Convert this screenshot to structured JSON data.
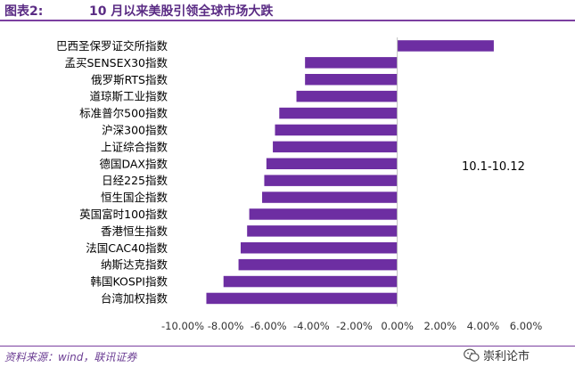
{
  "figure": {
    "label": "图表2:",
    "title": "10 月以来美股引领全球市场大跌"
  },
  "chart_data": {
    "type": "bar",
    "orientation": "horizontal",
    "categories": [
      "巴西圣保罗证交所指数",
      "孟买SENSEX30指数",
      "俄罗斯RTS指数",
      "道琼斯工业指数",
      "标准普尔500指数",
      "沪深300指数",
      "上证综合指数",
      "德国DAX指数",
      "日经225指数",
      "恒生国企指数",
      "英国富时100指数",
      "香港恒生指数",
      "法国CAC40指数",
      "纳斯达克指数",
      "韩国KOSPI指数",
      "台湾加权指数"
    ],
    "values": [
      4.5,
      -4.3,
      -4.3,
      -4.7,
      -5.5,
      -5.7,
      -5.8,
      -6.1,
      -6.2,
      -6.3,
      -6.9,
      -7.0,
      -7.3,
      -7.4,
      -8.1,
      -8.9
    ],
    "unit": "%",
    "xlim": [
      -10,
      6
    ],
    "xticks": [
      -10,
      -8,
      -6,
      -4,
      -2,
      0,
      2,
      4,
      6
    ],
    "tick_labels": [
      "-10.00%",
      "-8.00%",
      "-6.00%",
      "-4.00%",
      "-2.00%",
      "0.00%",
      "2.00%",
      "4.00%",
      "6.00%"
    ],
    "annotation": "10.1-10.12",
    "grid": false,
    "bar_color": "#6d2ea2"
  },
  "footer": {
    "source": "资料来源：wind，联讯证券",
    "watermark": "崇利论市",
    "watermark_icon": "wechat-icon"
  }
}
